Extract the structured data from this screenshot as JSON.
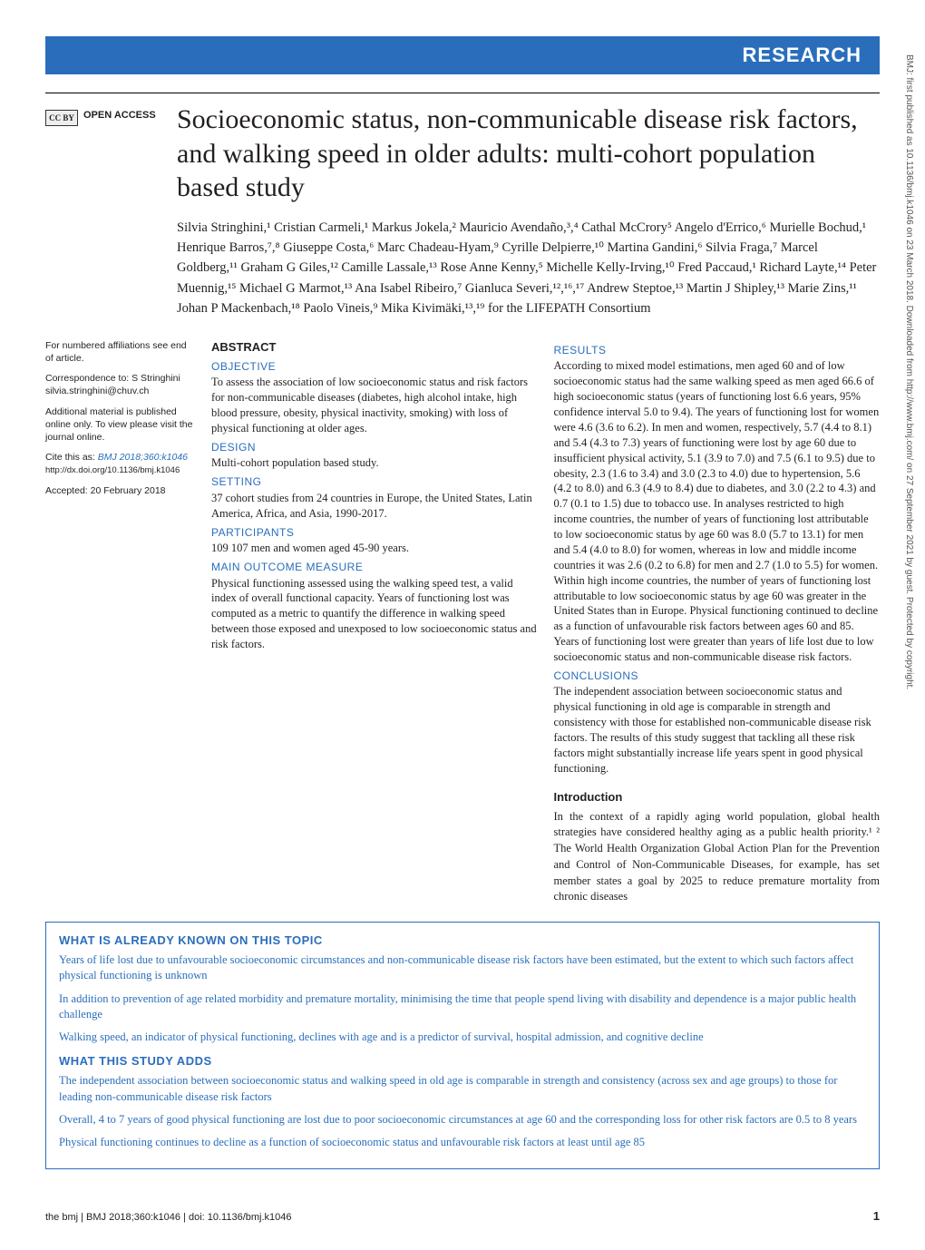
{
  "banner": "RESEARCH",
  "openAccess": {
    "badge": "CC BY",
    "label": "OPEN ACCESS"
  },
  "title": "Socioeconomic status, non-communicable disease risk factors, and walking speed in older adults: multi-cohort population based study",
  "authors": "Silvia Stringhini,¹ Cristian Carmeli,¹ Markus Jokela,² Mauricio Avendaño,³,⁴ Cathal McCrory⁵ Angelo d'Errico,⁶ Murielle Bochud,¹ Henrique Barros,⁷,⁸ Giuseppe Costa,⁶ Marc Chadeau-Hyam,⁹ Cyrille Delpierre,¹⁰ Martina Gandini,⁶ Silvia Fraga,⁷ Marcel Goldberg,¹¹ Graham G Giles,¹² Camille Lassale,¹³ Rose Anne Kenny,⁵ Michelle Kelly-Irving,¹⁰ Fred Paccaud,¹ Richard Layte,¹⁴ Peter Muennig,¹⁵ Michael G Marmot,¹³ Ana Isabel Ribeiro,⁷ Gianluca Severi,¹²,¹⁶,¹⁷ Andrew Steptoe,¹³ Martin J Shipley,¹³ Marie Zins,¹¹ Johan P Mackenbach,¹⁸ Paolo Vineis,⁹ Mika Kivimäki,¹³,¹⁹ for the LIFEPATH Consortium",
  "sidebar": {
    "affiliations": "For numbered affiliations see end of article.",
    "correspondence": "Correspondence to: S Stringhini silvia.stringhini@chuv.ch",
    "supplement": "Additional material is published online only. To view please visit the journal online.",
    "citeLabel": "Cite this as:",
    "citeRef": "BMJ 2018;360:k1046",
    "doi": "http://dx.doi.org/10.1136/bmj.k1046",
    "accepted": "Accepted: 20 February 2018"
  },
  "abstract": {
    "heading": "ABSTRACT",
    "sections": [
      {
        "h": "OBJECTIVE",
        "t": "To assess the association of low socioeconomic status and risk factors for non-communicable diseases (diabetes, high alcohol intake, high blood pressure, obesity, physical inactivity, smoking) with loss of physical functioning at older ages."
      },
      {
        "h": "DESIGN",
        "t": "Multi-cohort population based study."
      },
      {
        "h": "SETTING",
        "t": "37 cohort studies from 24 countries in Europe, the United States, Latin America, Africa, and Asia, 1990-2017."
      },
      {
        "h": "PARTICIPANTS",
        "t": "109 107 men and women aged 45-90 years."
      },
      {
        "h": "MAIN OUTCOME MEASURE",
        "t": "Physical functioning assessed using the walking speed test, a valid index of overall functional capacity. Years of functioning lost was computed as a metric to quantify the difference in walking speed between those exposed and unexposed to low socioeconomic status and risk factors."
      }
    ],
    "resultsHeading": "RESULTS",
    "resultsText": "According to mixed model estimations, men aged 60 and of low socioeconomic status had the same walking speed as men aged 66.6 of high socioeconomic status (years of functioning lost 6.6 years, 95% confidence interval 5.0 to 9.4). The years of functioning lost for women were 4.6 (3.6 to 6.2). In men and women, respectively, 5.7 (4.4 to 8.1) and 5.4 (4.3 to 7.3) years of functioning were lost by age 60 due to insufficient physical activity, 5.1 (3.9 to 7.0) and 7.5 (6.1 to 9.5) due to obesity, 2.3 (1.6 to 3.4) and 3.0 (2.3 to 4.0) due to hypertension, 5.6 (4.2 to 8.0) and 6.3 (4.9 to 8.4) due to diabetes, and 3.0 (2.2 to 4.3) and 0.7 (0.1 to 1.5) due to tobacco use. In analyses restricted to high income countries, the number of years of functioning lost attributable to low socioeconomic status by age 60 was 8.0 (5.7 to 13.1) for men and 5.4 (4.0 to 8.0) for women, whereas in low and middle income countries it was 2.6 (0.2 to 6.8) for men and 2.7 (1.0 to 5.5) for women. Within high income countries, the number of years of functioning lost attributable to low socioeconomic status by age 60 was greater in the United States than in Europe. Physical functioning continued to decline as a function of unfavourable risk factors between ages 60 and 85. Years of functioning lost were greater than years of life lost due to low socioeconomic status and non-communicable disease risk factors.",
    "conclusionsHeading": "CONCLUSIONS",
    "conclusionsText": "The independent association between socioeconomic status and physical functioning in old age is comparable in strength and consistency with those for established non-communicable disease risk factors. The results of this study suggest that tackling all these risk factors might substantially increase life years spent in good physical functioning."
  },
  "infoBox": {
    "known": {
      "heading": "WHAT IS ALREADY KNOWN ON THIS TOPIC",
      "items": [
        "Years of life lost due to unfavourable socioeconomic circumstances and non-communicable disease risk factors have been estimated, but the extent to which such factors affect physical functioning is unknown",
        "In addition to prevention of age related morbidity and premature mortality, minimising the time that people spend living with disability and dependence is a major public health challenge",
        "Walking speed, an indicator of physical functioning, declines with age and is a predictor of survival, hospital admission, and cognitive decline"
      ]
    },
    "adds": {
      "heading": "WHAT THIS STUDY ADDS",
      "items": [
        "The independent association between socioeconomic status and walking speed in old age is comparable in strength and consistency (across sex and age groups) to those for leading non-communicable disease risk factors",
        "Overall, 4 to 7 years of good physical functioning are lost due to poor socioeconomic circumstances at age 60 and the corresponding loss for other risk factors are 0.5 to 8 years",
        "Physical functioning continues to decline as a function of socioeconomic status and unfavourable risk factors at least until age 85"
      ]
    }
  },
  "introduction": {
    "heading": "Introduction",
    "text": "In the context of a rapidly aging world population, global health strategies have considered healthy aging as a public health priority.¹ ² The World Health Organization Global Action Plan for the Prevention and Control of Non-Communicable Diseases, for example, has set member states a goal by 2025 to reduce premature mortality from chronic diseases"
  },
  "footer": {
    "left": "the bmj | BMJ 2018;360:k1046 | doi: 10.1136/bmj.k1046",
    "pageNum": "1"
  },
  "verticalNote": "BMJ: first published as 10.1136/bmj.k1046 on 23 March 2018. Downloaded from http://www.bmj.com/ on 27 September 2021 by guest. Protected by copyright.",
  "colors": {
    "brand": "#2a6ebb",
    "text": "#231f20"
  }
}
